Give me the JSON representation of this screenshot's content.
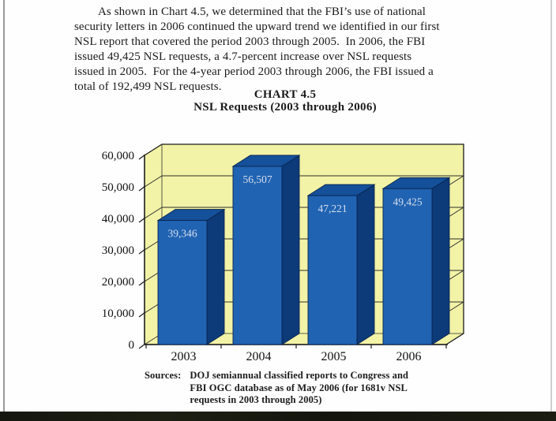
{
  "page": {
    "paragraph_lines": [
      "As shown in Chart 4.5, we determined that the FBI’s use of national",
      "security letters in 2006 continued the upward trend we identified in our first",
      "NSL report that covered the period 2003 through 2005.  In 2006, the FBI",
      "issued 49,425 NSL requests, a 4.7-percent increase over NSL requests",
      "issued in 2005.  For the 4-year period 2003 through 2006, the FBI issued a",
      "total of 192,499 NSL requests."
    ],
    "sources_label": "Sources:",
    "sources_lines": [
      "DOJ semiannual classified reports to Congress and",
      "FBI OGC database as of May 2006 (for 1681v NSL",
      "requests in 2003 through 2005)"
    ]
  },
  "chart_data": {
    "type": "bar",
    "style": "3d-column",
    "title": "CHART 4.5",
    "subtitle": "NSL Requests (2003 through 2006)",
    "categories": [
      "2003",
      "2004",
      "2005",
      "2006"
    ],
    "values": [
      39346,
      56507,
      47221,
      49425
    ],
    "value_labels": [
      "39,346",
      "56,507",
      "47,221",
      "49,425"
    ],
    "ylim": [
      0,
      60000
    ],
    "ytick_step": 10000,
    "ytick_labels": [
      "0",
      "10,000",
      "20,000",
      "30,000",
      "40,000",
      "50,000",
      "60,000"
    ],
    "grid": true,
    "legend": "none",
    "xlabel": "",
    "ylabel": "",
    "colors": {
      "wall": "#f2f3a6",
      "bar_front": "#2063b2",
      "bar_side": "#0d3a78",
      "bar_top": "#15509a",
      "outline": "#1c1c1c",
      "gridline": "#2e2e2e",
      "value_text": "#d7dfee",
      "axis_text": "#111111"
    }
  }
}
